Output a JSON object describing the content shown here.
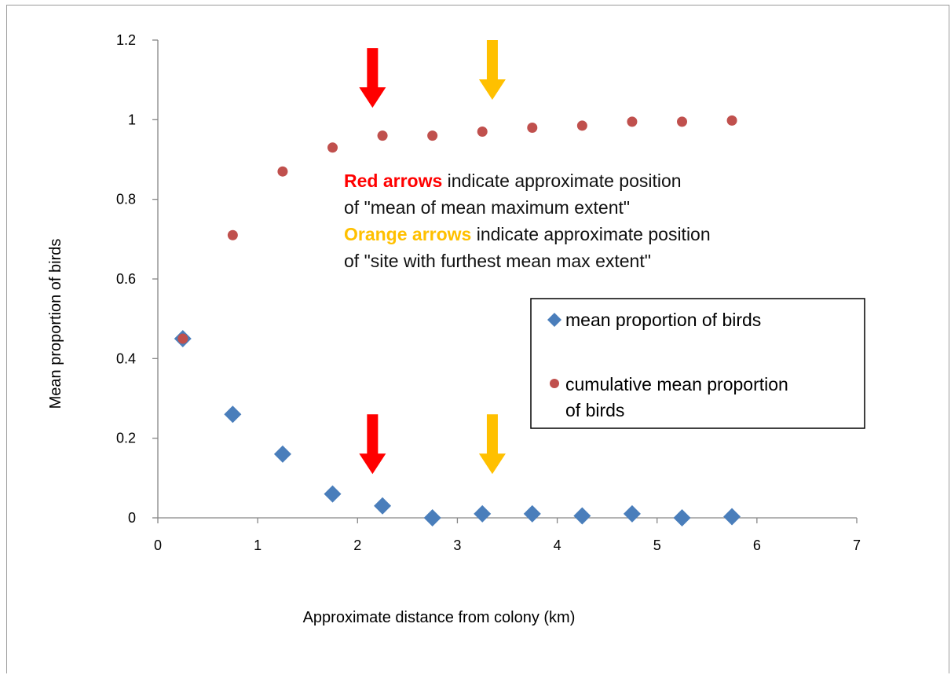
{
  "chart_data": {
    "type": "scatter",
    "xlabel": "Approximate distance from colony (km)",
    "ylabel": "Mean proportion of birds",
    "xlim": [
      0,
      7
    ],
    "ylim": [
      0,
      1.2
    ],
    "x_ticks": [
      "0",
      "1",
      "2",
      "3",
      "4",
      "5",
      "6",
      "7"
    ],
    "y_ticks": [
      "0",
      "0.2",
      "0.4",
      "0.6",
      "0.8",
      "1",
      "1.2"
    ],
    "grid": false,
    "legend_position": "right",
    "series": [
      {
        "name": "mean proportion of birds",
        "marker": "diamond",
        "color": "#4a7ebb",
        "x": [
          0.25,
          0.75,
          1.25,
          1.75,
          2.25,
          2.75,
          3.25,
          3.75,
          4.25,
          4.75,
          5.25,
          5.75
        ],
        "y": [
          0.45,
          0.26,
          0.16,
          0.06,
          0.03,
          0.0,
          0.01,
          0.01,
          0.005,
          0.01,
          0.0,
          0.003
        ]
      },
      {
        "name": "cumulative mean proportion of birds",
        "legend_lines": [
          "cumulative mean proportion",
          "of birds"
        ],
        "marker": "circle",
        "color": "#c0504d",
        "x": [
          0.25,
          0.75,
          1.25,
          1.75,
          2.25,
          2.75,
          3.25,
          3.75,
          4.25,
          4.75,
          5.25,
          5.75
        ],
        "y": [
          0.45,
          0.71,
          0.87,
          0.93,
          0.96,
          0.96,
          0.97,
          0.98,
          0.985,
          0.995,
          0.995,
          0.998
        ]
      }
    ],
    "annotations": {
      "lines": [
        {
          "highlight": "Red arrows",
          "highlight_color": "#ff0000",
          "rest": " indicate approximate position"
        },
        {
          "highlight": "",
          "highlight_color": "",
          "rest": "of \"mean of mean maximum extent\""
        },
        {
          "highlight": "Orange arrows",
          "highlight_color": "#ffc000",
          "rest": " indicate approximate position"
        },
        {
          "highlight": "",
          "highlight_color": "",
          "rest": "of \"site with furthest mean max extent\""
        }
      ],
      "arrows": [
        {
          "color": "#ff0000",
          "x": 2.15,
          "y_from": 1.18,
          "y_to": 1.03
        },
        {
          "color": "#ffc000",
          "x": 3.35,
          "y_from": 1.2,
          "y_to": 1.05
        },
        {
          "color": "#ff0000",
          "x": 2.15,
          "y_from": 0.26,
          "y_to": 0.11
        },
        {
          "color": "#ffc000",
          "x": 3.35,
          "y_from": 0.26,
          "y_to": 0.11
        }
      ]
    }
  }
}
